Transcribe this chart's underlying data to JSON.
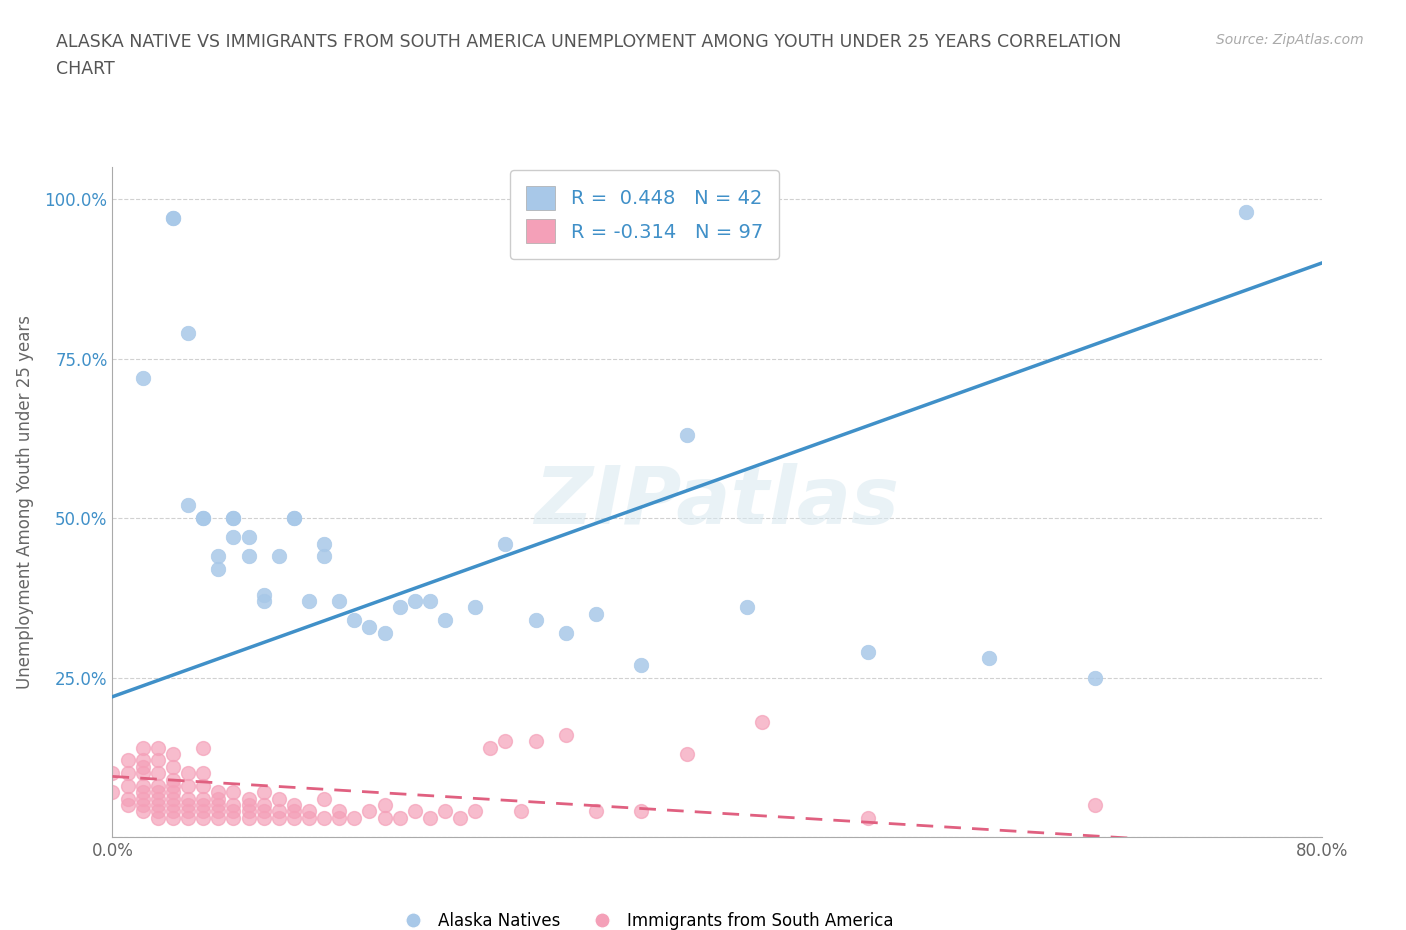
{
  "title_line1": "ALASKA NATIVE VS IMMIGRANTS FROM SOUTH AMERICA UNEMPLOYMENT AMONG YOUTH UNDER 25 YEARS CORRELATION",
  "title_line2": "CHART",
  "source_text": "Source: ZipAtlas.com",
  "ylabel": "Unemployment Among Youth under 25 years",
  "watermark": "ZIPatlas",
  "xlim": [
    0.0,
    0.8
  ],
  "ylim": [
    0.0,
    1.05
  ],
  "x_ticks": [
    0.0,
    0.2,
    0.4,
    0.6,
    0.8
  ],
  "x_tick_labels": [
    "0.0%",
    "",
    "",
    "",
    "80.0%"
  ],
  "y_ticks": [
    0.0,
    0.25,
    0.5,
    0.75,
    1.0
  ],
  "y_tick_labels": [
    "",
    "25.0%",
    "50.0%",
    "75.0%",
    "100.0%"
  ],
  "blue_color": "#a8c8e8",
  "pink_color": "#f4a0b8",
  "blue_line_color": "#4090c8",
  "pink_line_color": "#e06080",
  "grid_color": "#cccccc",
  "background_color": "#ffffff",
  "R_blue": 0.448,
  "N_blue": 42,
  "R_pink": -0.314,
  "N_pink": 97,
  "legend_label_blue": "Alaska Natives",
  "legend_label_pink": "Immigrants from South America",
  "blue_line_x0": 0.0,
  "blue_line_y0": 0.22,
  "blue_line_x1": 0.8,
  "blue_line_y1": 0.9,
  "pink_line_x0": 0.0,
  "pink_line_y0": 0.095,
  "pink_line_x1": 0.8,
  "pink_line_y1": -0.02,
  "alaska_x": [
    0.02,
    0.04,
    0.04,
    0.05,
    0.05,
    0.06,
    0.06,
    0.07,
    0.07,
    0.08,
    0.08,
    0.08,
    0.09,
    0.09,
    0.1,
    0.1,
    0.11,
    0.12,
    0.12,
    0.13,
    0.14,
    0.14,
    0.15,
    0.16,
    0.17,
    0.18,
    0.19,
    0.2,
    0.21,
    0.22,
    0.24,
    0.26,
    0.28,
    0.3,
    0.32,
    0.35,
    0.38,
    0.42,
    0.5,
    0.58,
    0.65,
    0.75
  ],
  "alaska_y": [
    0.72,
    0.97,
    0.97,
    0.79,
    0.52,
    0.5,
    0.5,
    0.42,
    0.44,
    0.47,
    0.5,
    0.5,
    0.44,
    0.47,
    0.38,
    0.37,
    0.44,
    0.5,
    0.5,
    0.37,
    0.44,
    0.46,
    0.37,
    0.34,
    0.33,
    0.32,
    0.36,
    0.37,
    0.37,
    0.34,
    0.36,
    0.46,
    0.34,
    0.32,
    0.35,
    0.27,
    0.63,
    0.36,
    0.29,
    0.28,
    0.25,
    0.98
  ],
  "south_am_x": [
    0.0,
    0.0,
    0.01,
    0.01,
    0.01,
    0.01,
    0.01,
    0.02,
    0.02,
    0.02,
    0.02,
    0.02,
    0.02,
    0.02,
    0.02,
    0.02,
    0.03,
    0.03,
    0.03,
    0.03,
    0.03,
    0.03,
    0.03,
    0.03,
    0.03,
    0.04,
    0.04,
    0.04,
    0.04,
    0.04,
    0.04,
    0.04,
    0.04,
    0.04,
    0.05,
    0.05,
    0.05,
    0.05,
    0.05,
    0.05,
    0.06,
    0.06,
    0.06,
    0.06,
    0.06,
    0.06,
    0.06,
    0.07,
    0.07,
    0.07,
    0.07,
    0.07,
    0.08,
    0.08,
    0.08,
    0.08,
    0.09,
    0.09,
    0.09,
    0.09,
    0.1,
    0.1,
    0.1,
    0.1,
    0.11,
    0.11,
    0.11,
    0.12,
    0.12,
    0.12,
    0.13,
    0.13,
    0.14,
    0.14,
    0.15,
    0.15,
    0.16,
    0.17,
    0.18,
    0.18,
    0.19,
    0.2,
    0.21,
    0.22,
    0.23,
    0.24,
    0.25,
    0.26,
    0.27,
    0.28,
    0.3,
    0.32,
    0.35,
    0.38,
    0.43,
    0.5,
    0.65
  ],
  "south_am_y": [
    0.07,
    0.1,
    0.05,
    0.06,
    0.08,
    0.1,
    0.12,
    0.04,
    0.05,
    0.06,
    0.07,
    0.08,
    0.1,
    0.11,
    0.12,
    0.14,
    0.03,
    0.04,
    0.05,
    0.06,
    0.07,
    0.08,
    0.1,
    0.12,
    0.14,
    0.03,
    0.04,
    0.05,
    0.06,
    0.07,
    0.08,
    0.09,
    0.11,
    0.13,
    0.03,
    0.04,
    0.05,
    0.06,
    0.08,
    0.1,
    0.03,
    0.04,
    0.05,
    0.06,
    0.08,
    0.1,
    0.14,
    0.03,
    0.04,
    0.05,
    0.06,
    0.07,
    0.03,
    0.04,
    0.05,
    0.07,
    0.03,
    0.04,
    0.05,
    0.06,
    0.03,
    0.04,
    0.05,
    0.07,
    0.03,
    0.04,
    0.06,
    0.03,
    0.04,
    0.05,
    0.03,
    0.04,
    0.03,
    0.06,
    0.03,
    0.04,
    0.03,
    0.04,
    0.03,
    0.05,
    0.03,
    0.04,
    0.03,
    0.04,
    0.03,
    0.04,
    0.14,
    0.15,
    0.04,
    0.15,
    0.16,
    0.04,
    0.04,
    0.13,
    0.18,
    0.03,
    0.05
  ]
}
